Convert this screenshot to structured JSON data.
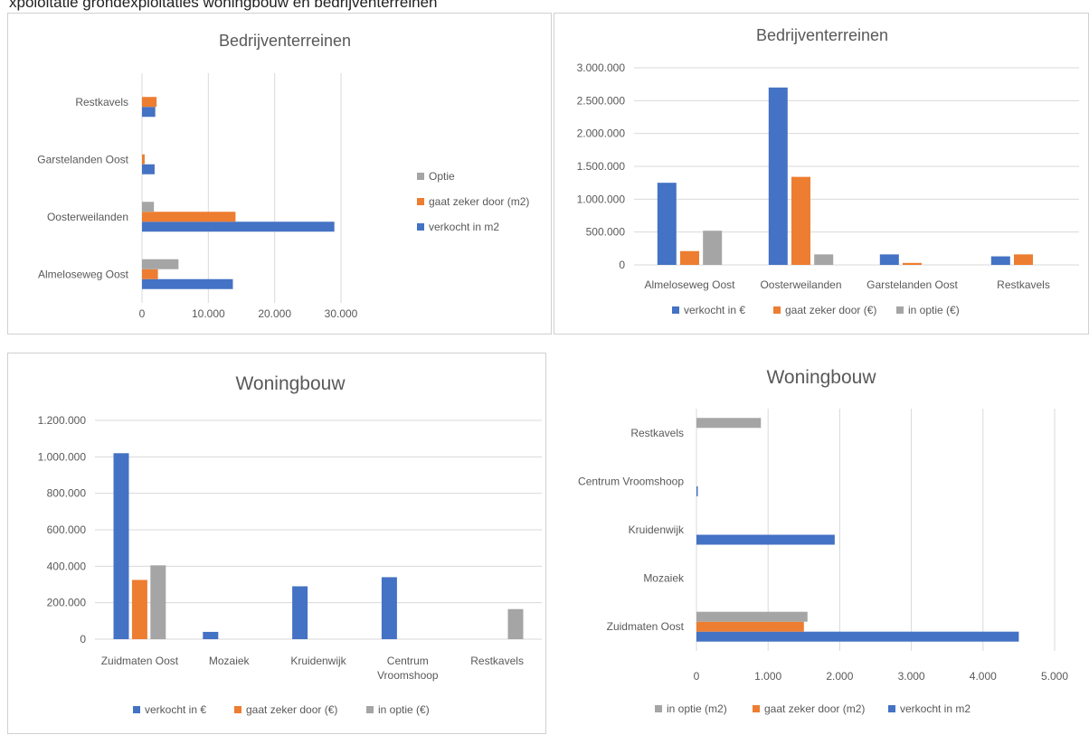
{
  "page_caption": "xpoloitatie grondexploitaties woningbouw en bedrijventerreinen",
  "colors": {
    "blue": "#4472C4",
    "orange": "#ED7D31",
    "gray": "#A5A5A5",
    "grid": "#d9d9d9"
  },
  "chart_data": [
    {
      "type": "bar",
      "orientation": "horizontal",
      "title": "Bedrijventerreinen",
      "categories": [
        "Almeloseweg Oost",
        "Oosterweilanden",
        "Garstelanden Oost",
        "Restkavels"
      ],
      "series": [
        {
          "name": "verkocht in m2",
          "color": "#4472C4",
          "values": [
            13700,
            29000,
            1900,
            2000
          ]
        },
        {
          "name": "gaat zeker door (m2)",
          "color": "#ED7D31",
          "values": [
            2400,
            14100,
            400,
            2200
          ]
        },
        {
          "name": "Optie",
          "color": "#A5A5A5",
          "values": [
            5500,
            1800,
            0,
            0
          ]
        }
      ],
      "xlim": [
        0,
        30000
      ],
      "ticks": [
        "0",
        "10.000",
        "20.000",
        "30.000"
      ],
      "tick_values": [
        0,
        10000,
        20000,
        30000
      ],
      "grid": true,
      "legend_position": "right"
    },
    {
      "type": "bar",
      "orientation": "vertical",
      "title": "Bedrijventerreinen",
      "categories": [
        "Almeloseweg Oost",
        "Oosterweilanden",
        "Garstelanden Oost",
        "Restkavels"
      ],
      "series": [
        {
          "name": "verkocht in €",
          "color": "#4472C4",
          "values": [
            1250000,
            2700000,
            160000,
            130000
          ]
        },
        {
          "name": "gaat zeker door (€)",
          "color": "#ED7D31",
          "values": [
            210000,
            1340000,
            30000,
            160000
          ]
        },
        {
          "name": "in optie (€)",
          "color": "#A5A5A5",
          "values": [
            520000,
            160000,
            0,
            0
          ]
        }
      ],
      "ylim": [
        0,
        3000000
      ],
      "ticks": [
        "0",
        "500.000",
        "1.000.000",
        "1.500.000",
        "2.000.000",
        "2.500.000",
        "3.000.000"
      ],
      "tick_values": [
        0,
        500000,
        1000000,
        1500000,
        2000000,
        2500000,
        3000000
      ],
      "grid": true,
      "legend_position": "bottom"
    },
    {
      "type": "bar",
      "orientation": "vertical",
      "title": "Woningbouw",
      "categories": [
        "Zuidmaten Oost",
        "Mozaiek",
        "Kruidenwijk",
        "Centrum Vroomshoop",
        "Restkavels"
      ],
      "category_lines": [
        [
          "Zuidmaten Oost"
        ],
        [
          "Mozaiek"
        ],
        [
          "Kruidenwijk"
        ],
        [
          "Centrum",
          "Vroomshoop"
        ],
        [
          "Restkavels"
        ]
      ],
      "series": [
        {
          "name": "verkocht in €",
          "color": "#4472C4",
          "values": [
            1020000,
            40000,
            290000,
            340000,
            0
          ]
        },
        {
          "name": "gaat zeker door (€)",
          "color": "#ED7D31",
          "values": [
            325000,
            0,
            0,
            0,
            0
          ]
        },
        {
          "name": "in optie (€)",
          "color": "#A5A5A5",
          "values": [
            405000,
            0,
            0,
            0,
            165000
          ]
        }
      ],
      "ylim": [
        0,
        1200000
      ],
      "ticks": [
        "0",
        "200.000",
        "400.000",
        "600.000",
        "800.000",
        "1.000.000",
        "1.200.000"
      ],
      "tick_values": [
        0,
        200000,
        400000,
        600000,
        800000,
        1000000,
        1200000
      ],
      "grid": true,
      "legend_position": "bottom"
    },
    {
      "type": "bar",
      "orientation": "horizontal",
      "title": "Woningbouw",
      "categories": [
        "Zuidmaten Oost",
        "Mozaiek",
        "Kruidenwijk",
        "Centrum Vroomshoop",
        "Restkavels"
      ],
      "series": [
        {
          "name": "verkocht in m2",
          "color": "#4472C4",
          "values": [
            4500,
            0,
            1930,
            10,
            0
          ]
        },
        {
          "name": "gaat zeker door (m2)",
          "color": "#ED7D31",
          "values": [
            1500,
            0,
            0,
            0,
            0
          ]
        },
        {
          "name": "in optie (m2)",
          "color": "#A5A5A5",
          "values": [
            1550,
            0,
            0,
            0,
            900
          ]
        }
      ],
      "xlim": [
        0,
        5000
      ],
      "ticks": [
        "0",
        "1.000",
        "2.000",
        "3.000",
        "4.000",
        "5.000"
      ],
      "tick_values": [
        0,
        1000,
        2000,
        3000,
        4000,
        5000
      ],
      "grid": true,
      "legend_position": "bottom",
      "legend_order": [
        "in optie (m2)",
        "gaat zeker door (m2)",
        "verkocht in m2"
      ]
    }
  ]
}
